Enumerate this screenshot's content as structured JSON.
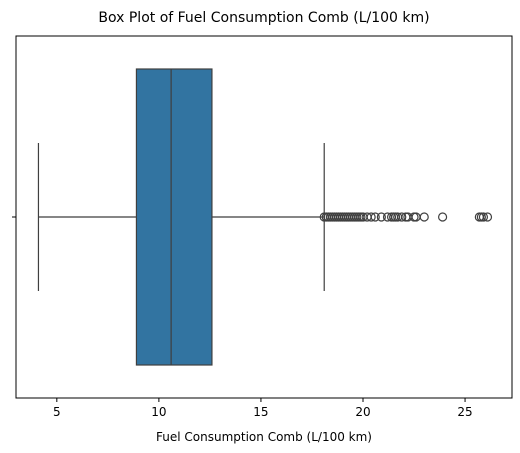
{
  "chart_data": {
    "type": "box",
    "title": "Box Plot of Fuel Consumption Comb (L/100 km)",
    "xlabel": "Fuel Consumption Comb (L/100 km)",
    "ylabel": "",
    "xlim": [
      3.0,
      27.3
    ],
    "xticks": [
      5,
      10,
      15,
      20,
      25
    ],
    "grid": false,
    "box": {
      "whisker_low": 4.1,
      "q1": 8.9,
      "median": 10.6,
      "q3": 12.6,
      "whisker_high": 18.1,
      "color": "#3274a1",
      "edge_color": "#3f3f3f"
    },
    "outliers": [
      18.1,
      18.2,
      18.3,
      18.4,
      18.5,
      18.6,
      18.7,
      18.8,
      18.9,
      19.0,
      19.1,
      19.2,
      19.3,
      19.4,
      19.5,
      19.6,
      19.7,
      19.8,
      19.9,
      20.0,
      20.2,
      20.4,
      20.6,
      20.9,
      21.2,
      21.4,
      21.5,
      21.6,
      21.7,
      21.9,
      22.1,
      22.2,
      22.5,
      22.6,
      23.0,
      23.9,
      25.7,
      25.8,
      25.9,
      26.1
    ]
  }
}
